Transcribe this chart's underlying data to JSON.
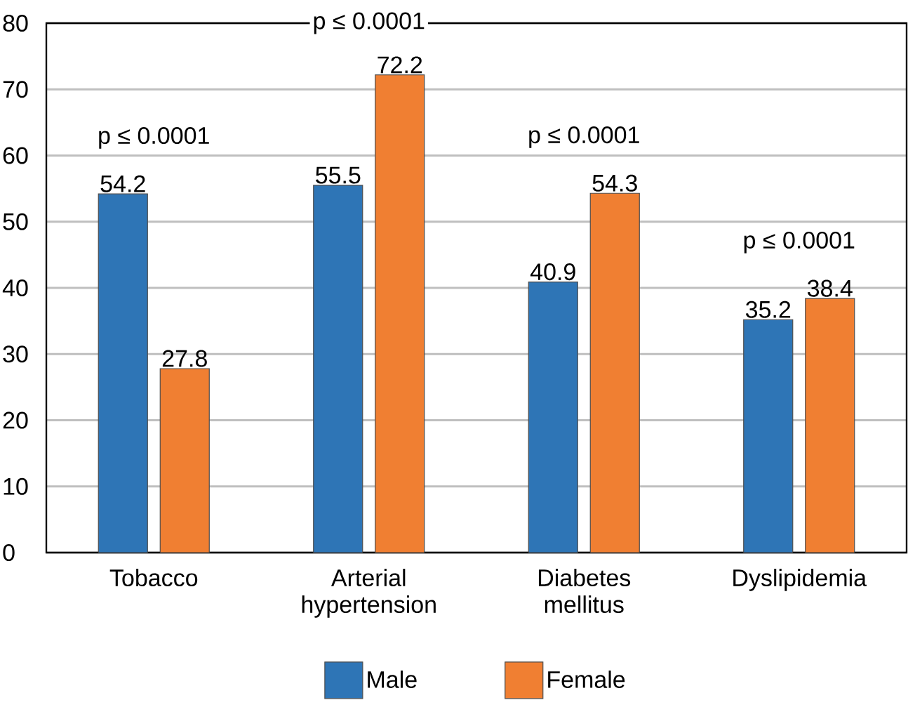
{
  "chart_data": {
    "type": "bar",
    "categories": [
      "Tobacco",
      "Arterial hypertension",
      "Diabetes mellitus",
      "Dyslipidemia"
    ],
    "series": [
      {
        "name": "Male",
        "color": "#2e75b6",
        "values": [
          54.2,
          55.5,
          40.9,
          35.2
        ]
      },
      {
        "name": "Female",
        "color": "#f07f32",
        "values": [
          27.8,
          72.2,
          54.3,
          38.4
        ]
      }
    ],
    "ylim": [
      0,
      80
    ],
    "yticks": [
      0,
      10,
      20,
      30,
      40,
      50,
      60,
      70,
      80
    ],
    "grid": "y",
    "legend": "bottom",
    "data_labels": true,
    "annotations": [
      "p ≤ 0.0001",
      "p ≤ 0.0001",
      "p ≤ 0.0001",
      "p ≤ 0.0001"
    ]
  }
}
